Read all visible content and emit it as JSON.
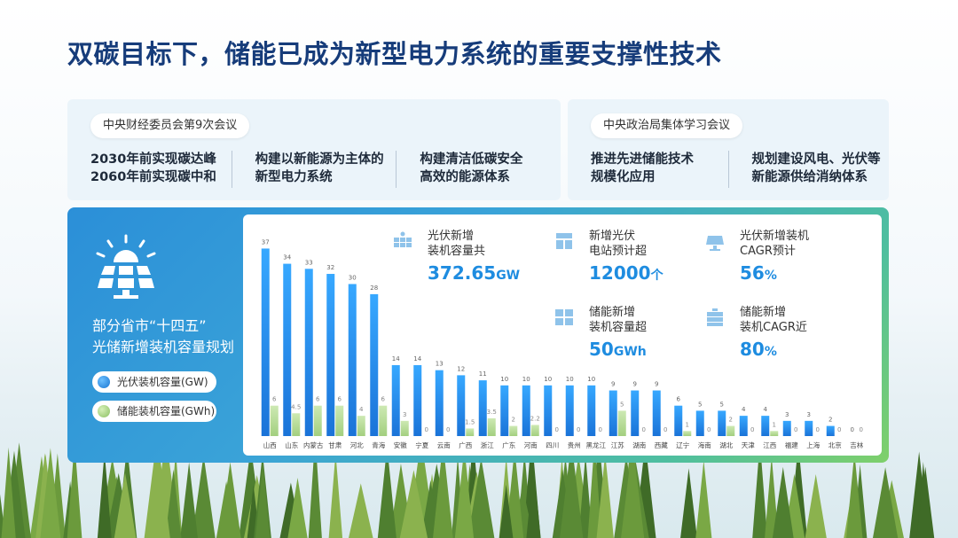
{
  "title": "双碳目标下，储能已成为新型电力系统的重要支撑性技术",
  "meeting_left": {
    "pill": "中央财经委员会第9次会议",
    "items": [
      "2030年前实现碳达峰\n2060年前实现碳中和",
      "构建以新能源为主体的\n新型电力系统",
      "构建清洁低碳安全\n高效的能源体系"
    ]
  },
  "meeting_right": {
    "pill": "中央政治局集体学习会议",
    "items": [
      "推进先进储能技术\n规模化应用",
      "规划建设风电、光伏等\n新能源供给消纳体系"
    ]
  },
  "side": {
    "title": "部分省市“十四五”\n光储新增装机容量规划",
    "legend_pv": "光伏装机容量(GW)",
    "legend_storage": "储能装机容量(GWh)"
  },
  "stats": [
    {
      "label": "光伏新增\n装机容量共",
      "value": "372.65",
      "unit": "GW",
      "icon": "solar-panel-icon"
    },
    {
      "label": "新增光伏\n电站预计超",
      "value": "12000",
      "unit": "个",
      "icon": "power-station-icon"
    },
    {
      "label": "光伏新增装机\nCAGR预计",
      "value": "56",
      "unit": "%",
      "icon": "solar-growth-icon"
    },
    {
      "label": "储能新增\n装机容量超",
      "value": "50",
      "unit": "GWh",
      "icon": "battery-storage-icon"
    },
    {
      "label": "储能新增\n装机CAGR近",
      "value": "80",
      "unit": "%",
      "icon": "storage-growth-icon"
    }
  ],
  "colors": {
    "pv": "#2196f3",
    "storage": "#a9d48a",
    "title": "#163c7a",
    "accent": "#1e8ce0"
  },
  "chart_data": {
    "type": "bar",
    "categories": [
      "山西",
      "山东",
      "内蒙古",
      "甘肃",
      "河北",
      "青海",
      "安徽",
      "宁夏",
      "云南",
      "广西",
      "浙江",
      "广东",
      "河南",
      "四川",
      "贵州",
      "黑龙江",
      "江苏",
      "湖南",
      "西藏",
      "辽宁",
      "海南",
      "湖北",
      "天津",
      "江西",
      "福建",
      "上海",
      "北京",
      "吉林"
    ],
    "series": [
      {
        "name": "光伏装机容量(GW)",
        "values": [
          37,
          34,
          33,
          32,
          30,
          28,
          14,
          14,
          13,
          12,
          11,
          10,
          10,
          10,
          10,
          10,
          9,
          9,
          9,
          6,
          5,
          5,
          4,
          4,
          3,
          3,
          2,
          0
        ]
      },
      {
        "name": "储能装机容量(GWh)",
        "values": [
          6,
          4.5,
          6,
          6,
          4,
          6,
          3,
          0,
          0,
          1.5,
          3.5,
          2,
          2.2,
          0,
          0,
          0,
          5,
          0,
          0,
          1,
          0,
          2,
          0,
          1,
          0,
          0,
          0,
          0
        ]
      }
    ],
    "pv_labels": [
      "37",
      "34",
      "33",
      "32",
      "30",
      "28",
      "14",
      "14",
      "13",
      "12",
      "11",
      "10",
      "10",
      "10",
      "10",
      "10",
      "9",
      "9",
      "9",
      "6",
      "5",
      "5",
      "4",
      "4",
      "3",
      "3",
      "2",
      "0"
    ],
    "storage_labels": [
      "6",
      "4.5",
      "6",
      "6",
      "4",
      "6",
      "3",
      "0",
      "0",
      "1.5",
      "3.5",
      "2",
      "2.2",
      "0",
      "0",
      "0",
      "5",
      "0",
      "0",
      "1",
      "0",
      "2",
      "0",
      "1",
      "0",
      "0",
      "0",
      "0"
    ],
    "ylim": [
      0,
      40
    ],
    "grid": false
  }
}
